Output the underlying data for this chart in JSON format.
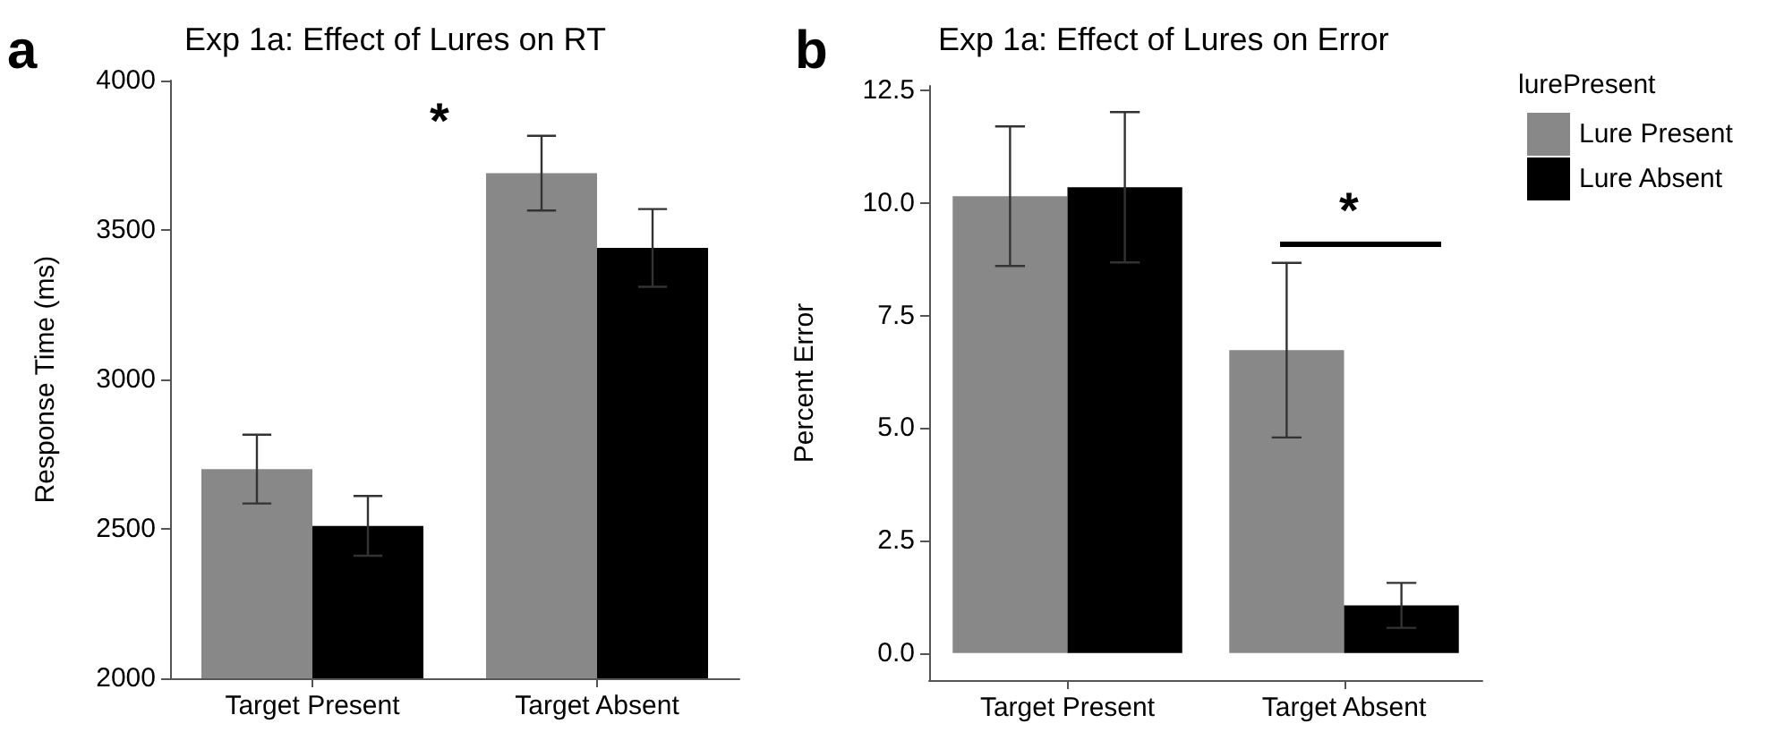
{
  "chart_data": [
    {
      "type": "bar",
      "title": "Exp 1a: Effect of Lures on RT",
      "ylabel": "Response Time (ms)",
      "categories": [
        "Target Present",
        "Target Absent"
      ],
      "series": [
        {
          "color": "#888888",
          "values": [
            2700,
            3690
          ],
          "errors": [
            115,
            125
          ]
        },
        {
          "color": "#000000",
          "values": [
            2510,
            3440
          ],
          "errors": [
            100,
            130
          ]
        }
      ],
      "ylim": [
        2000,
        4000
      ],
      "yticks": [
        2000,
        2500,
        3000,
        3500,
        4000
      ],
      "grid": false,
      "legend": false,
      "annotations": [
        "a",
        "*"
      ]
    },
    {
      "type": "bar",
      "title": "Exp 1a: Effect of Lures on Error",
      "ylabel": "Percent Error",
      "legend_title": "lurePresent",
      "categories": [
        "Target Present",
        "Target Absent"
      ],
      "series": [
        {
          "name": "Lure Present",
          "color": "#888888",
          "values": [
            10.15,
            6.73
          ],
          "errors": [
            1.55,
            1.94
          ]
        },
        {
          "name": "Lure Absent",
          "color": "#000000",
          "values": [
            10.35,
            1.06
          ],
          "errors": [
            1.67,
            0.5
          ]
        }
      ],
      "ylim": [
        -0.6,
        12.6
      ],
      "yticks": [
        {
          "value": 0,
          "label": "0.0"
        },
        {
          "value": 2.5,
          "label": "2.5"
        },
        {
          "value": 5,
          "label": "5.0"
        },
        {
          "value": 7.5,
          "label": "7.5"
        },
        {
          "value": 10,
          "label": "10.0"
        },
        {
          "value": 12.5,
          "label": "12.5"
        }
      ],
      "grid": false,
      "legend": "right",
      "annotations": [
        "b",
        "*"
      ]
    }
  ]
}
